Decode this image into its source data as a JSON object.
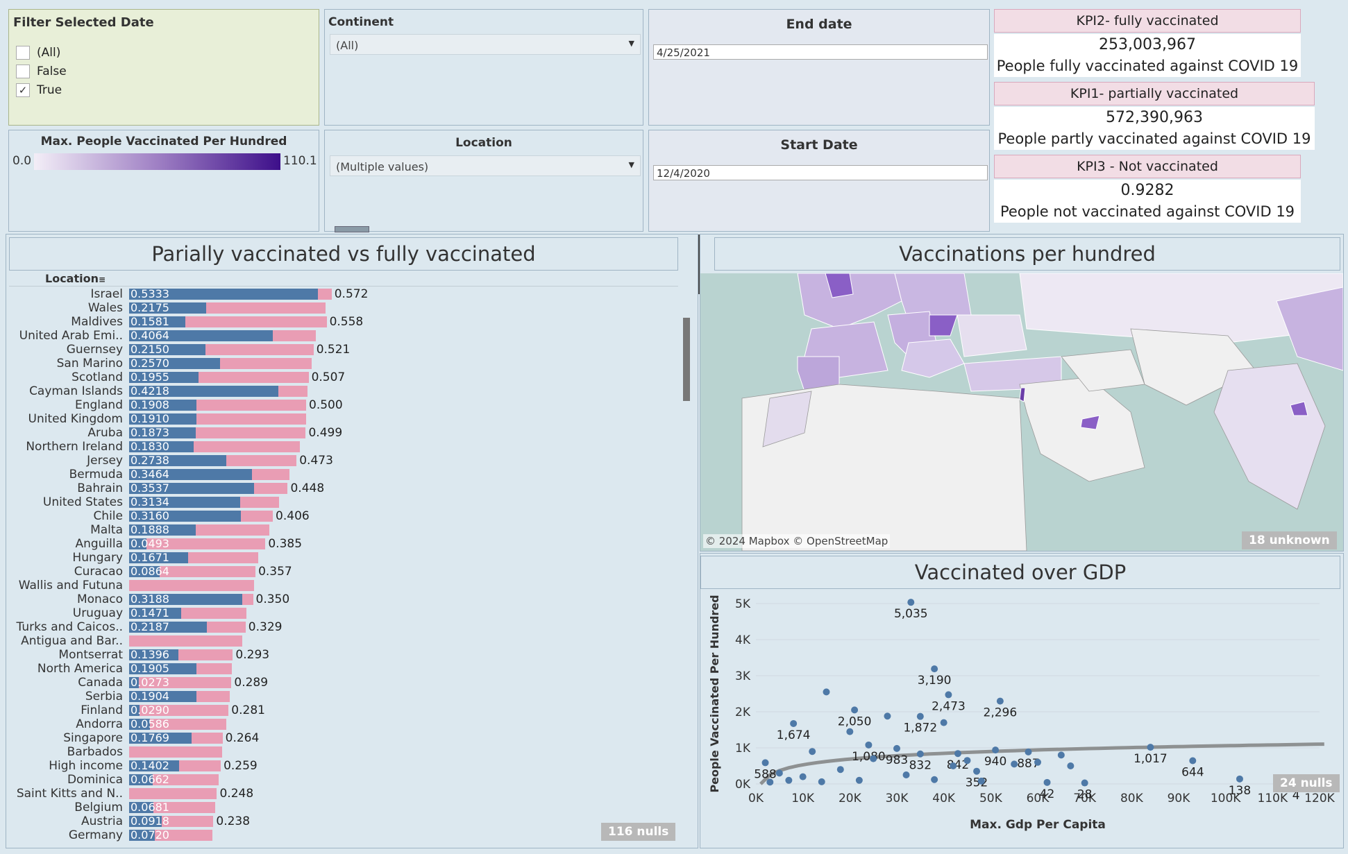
{
  "filters": {
    "selected_date": {
      "title": "Filter Selected Date",
      "options": [
        {
          "label": "(All)",
          "checked": false
        },
        {
          "label": "False",
          "checked": false
        },
        {
          "label": "True",
          "checked": true
        }
      ],
      "check_mark": "✓"
    },
    "continent": {
      "title": "Continent",
      "value": "(All)"
    },
    "end_date": {
      "title": "End date",
      "value": "4/25/2021"
    },
    "legend": {
      "title": "Max. People Vaccinated Per Hundred",
      "min": "0.0",
      "max": "110.1"
    },
    "location": {
      "title": "Location",
      "value": "(Multiple values)"
    },
    "start_date": {
      "title": "Start Date",
      "value": "12/4/2020"
    }
  },
  "kpis": [
    {
      "label": "KPI2- fully vaccinated",
      "value": "253,003,967",
      "desc": "People fully vaccinated against COVID 19"
    },
    {
      "label": "KPI1- partially vaccinated",
      "value": "572,390,963",
      "desc": "People partly vaccinated against COVID 19"
    },
    {
      "label": "KPI3 - Not vaccinated",
      "value": "0.9282",
      "desc": "People not vaccinated against COVID 19"
    }
  ],
  "bar_chart_title": "Parially vaccinated vs fully vaccinated",
  "bar_header": "Location",
  "bar_nulls": "116 nulls",
  "map_title": "Vaccinations per hundred",
  "map_attribution": "© 2024 Mapbox © OpenStreetMap",
  "map_unknown": "18 unknown",
  "scatter_title": "Vaccinated over GDP",
  "scatter_nulls": "24 nulls",
  "chart_data": [
    {
      "type": "bar",
      "title": "Parially vaccinated vs fully vaccinated",
      "xlabel": "",
      "ylabel": "Location",
      "xlim": [
        0,
        0.6
      ],
      "categories": [
        "Israel",
        "Wales",
        "Maldives",
        "United Arab Emi..",
        "Guernsey",
        "San Marino",
        "Scotland",
        "Cayman Islands",
        "England",
        "United Kingdom",
        "Aruba",
        "Northern Ireland",
        "Jersey",
        "Bermuda",
        "Bahrain",
        "United States",
        "Chile",
        "Malta",
        "Anguilla",
        "Hungary",
        "Curacao",
        "Wallis and Futuna",
        "Monaco",
        "Uruguay",
        "Turks and Caicos..",
        "Antigua and Bar..",
        "Montserrat",
        "North America",
        "Canada",
        "Serbia",
        "Finland",
        "Andorra",
        "Singapore",
        "Barbados",
        "High income",
        "Dominica",
        "Saint Kitts and N..",
        "Belgium",
        "Austria",
        "Germany"
      ],
      "series": [
        {
          "name": "Fully vaccinated",
          "values": [
            0.5333,
            0.2175,
            0.1581,
            0.4064,
            0.215,
            0.257,
            0.1955,
            0.4218,
            0.1908,
            0.191,
            0.1873,
            0.183,
            0.2738,
            0.3464,
            0.3537,
            0.3134,
            0.316,
            0.1888,
            0.0493,
            0.1671,
            0.0864,
            null,
            0.3188,
            0.1471,
            0.2187,
            null,
            0.1396,
            0.1905,
            0.0273,
            0.1904,
            0.029,
            0.0586,
            0.1769,
            null,
            0.1402,
            0.0662,
            null,
            0.0681,
            0.0918,
            0.072
          ]
        },
        {
          "name": "Partially vaccinated",
          "values": [
            0.572,
            0.555,
            0.558,
            0.528,
            0.521,
            0.516,
            0.507,
            0.503,
            0.5,
            0.5,
            0.499,
            0.483,
            0.473,
            0.452,
            0.448,
            0.423,
            0.406,
            0.397,
            0.385,
            0.365,
            0.357,
            0.352,
            0.35,
            0.331,
            0.329,
            0.32,
            0.293,
            0.291,
            0.289,
            0.285,
            0.281,
            0.275,
            0.264,
            0.262,
            0.259,
            0.253,
            0.248,
            0.244,
            0.238,
            0.236
          ]
        }
      ],
      "labels": [
        "0.572",
        "",
        "0.558",
        "",
        "0.521",
        "",
        "0.507",
        "",
        "0.500",
        "",
        "0.499",
        "",
        "0.473",
        "",
        "0.448",
        "",
        "0.406",
        "",
        "0.385",
        "",
        "0.357",
        "",
        "0.350",
        "",
        "0.329",
        "",
        "0.293",
        "",
        "0.289",
        "",
        "0.281",
        "",
        "0.264",
        "",
        "0.259",
        "",
        "0.248",
        "",
        "0.238",
        ""
      ]
    },
    {
      "type": "scatter",
      "title": "Vaccinated over GDP",
      "xlabel": "Max. Gdp Per Capita",
      "ylabel": "People Vaccinated Per Hundred",
      "xlim": [
        0,
        120000
      ],
      "ylim": [
        0,
        5000
      ],
      "xticks": [
        "0K",
        "10K",
        "20K",
        "30K",
        "40K",
        "50K",
        "60K",
        "70K",
        "80K",
        "90K",
        "100K",
        "110K",
        "120K"
      ],
      "yticks": [
        "0K",
        "1K",
        "2K",
        "3K",
        "4K",
        "5K"
      ],
      "points": [
        {
          "x": 33000,
          "y": 5035,
          "label": "5,035"
        },
        {
          "x": 38000,
          "y": 3190,
          "label": "3,190"
        },
        {
          "x": 41000,
          "y": 2473,
          "label": "2,473"
        },
        {
          "x": 52000,
          "y": 2296,
          "label": "2,296"
        },
        {
          "x": 21000,
          "y": 2050,
          "label": "2,050"
        },
        {
          "x": 35000,
          "y": 1872,
          "label": "1,872"
        },
        {
          "x": 8000,
          "y": 1674,
          "label": "1,674"
        },
        {
          "x": 24000,
          "y": 1080,
          "label": "1,080"
        },
        {
          "x": 30000,
          "y": 983,
          "label": "983"
        },
        {
          "x": 35000,
          "y": 832,
          "label": "832"
        },
        {
          "x": 43000,
          "y": 842,
          "label": "842"
        },
        {
          "x": 51000,
          "y": 940,
          "label": "940"
        },
        {
          "x": 58000,
          "y": 887,
          "label": "887"
        },
        {
          "x": 47000,
          "y": 352,
          "label": "352"
        },
        {
          "x": 2000,
          "y": 588,
          "label": "588"
        },
        {
          "x": 62000,
          "y": 42,
          "label": "42"
        },
        {
          "x": 70000,
          "y": 28,
          "label": "28"
        },
        {
          "x": 84000,
          "y": 1017,
          "label": "1,017"
        },
        {
          "x": 93000,
          "y": 644,
          "label": "644"
        },
        {
          "x": 103000,
          "y": 138,
          "label": "138"
        },
        {
          "x": 115000,
          "y": 4,
          "label": "4"
        },
        {
          "x": 15000,
          "y": 2550,
          "label": ""
        },
        {
          "x": 28000,
          "y": 1880,
          "label": ""
        },
        {
          "x": 40000,
          "y": 1700,
          "label": ""
        },
        {
          "x": 20000,
          "y": 1450,
          "label": ""
        },
        {
          "x": 12000,
          "y": 900,
          "label": ""
        },
        {
          "x": 25000,
          "y": 700,
          "label": ""
        },
        {
          "x": 45000,
          "y": 650,
          "label": ""
        },
        {
          "x": 55000,
          "y": 550,
          "label": ""
        },
        {
          "x": 65000,
          "y": 800,
          "label": ""
        },
        {
          "x": 5000,
          "y": 300,
          "label": ""
        },
        {
          "x": 10000,
          "y": 200,
          "label": ""
        },
        {
          "x": 18000,
          "y": 400,
          "label": ""
        },
        {
          "x": 22000,
          "y": 100,
          "label": ""
        },
        {
          "x": 32000,
          "y": 250,
          "label": ""
        },
        {
          "x": 38000,
          "y": 120,
          "label": ""
        },
        {
          "x": 42000,
          "y": 500,
          "label": ""
        },
        {
          "x": 48000,
          "y": 80,
          "label": ""
        },
        {
          "x": 60000,
          "y": 600,
          "label": ""
        },
        {
          "x": 67000,
          "y": 500,
          "label": ""
        },
        {
          "x": 3000,
          "y": 50,
          "label": ""
        },
        {
          "x": 7000,
          "y": 100,
          "label": ""
        },
        {
          "x": 14000,
          "y": 60,
          "label": ""
        }
      ]
    }
  ]
}
